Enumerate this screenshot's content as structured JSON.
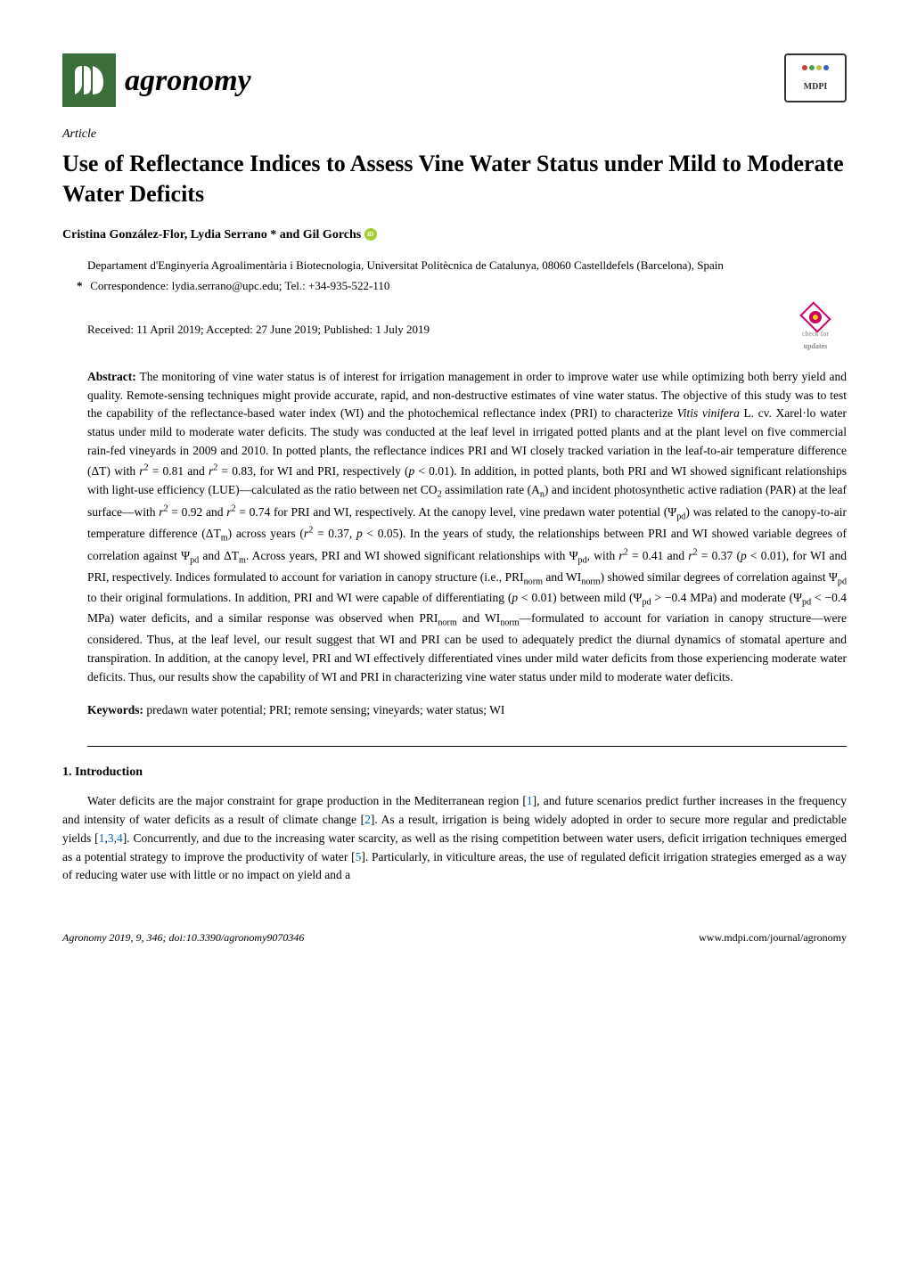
{
  "header": {
    "journal_name": "agronomy",
    "publisher_logo": "MDPI"
  },
  "article": {
    "type": "Article",
    "title": "Use of Reflectance Indices to Assess Vine Water Status under Mild to Moderate Water Deficits",
    "authors": "Cristina González-Flor, Lydia Serrano * and Gil Gorchs",
    "affiliation": "Departament d'Enginyeria Agroalimentària i Biotecnologia, Universitat Politècnica de Catalunya, 08060 Castelldefels (Barcelona), Spain",
    "correspondence": "Correspondence: lydia.serrano@upc.edu; Tel.: +34-935-522-110",
    "dates": "Received: 11 April 2019; Accepted: 27 June 2019; Published: 1 July 2019",
    "check_updates_label": "check for",
    "check_updates_label2": "updates"
  },
  "abstract": {
    "label": "Abstract:",
    "text_html": "The monitoring of vine water status is of interest for irrigation management in order to improve water use while optimizing both berry yield and quality. Remote-sensing techniques might provide accurate, rapid, and non-destructive estimates of vine water status. The objective of this study was to test the capability of the reflectance-based water index (WI) and the photochemical reflectance index (PRI) to characterize <i>Vitis vinifera</i> L. cv. Xarel·lo water status under mild to moderate water deficits. The study was conducted at the leaf level in irrigated potted plants and at the plant level on five commercial rain-fed vineyards in 2009 and 2010. In potted plants, the reflectance indices PRI and WI closely tracked variation in the leaf-to-air temperature difference (ΔT) with <i>r</i><sup>2</sup> = 0.81 and <i>r</i><sup>2</sup> = 0.83, for WI and PRI, respectively (<i>p</i> < 0.01). In addition, in potted plants, both PRI and WI showed significant relationships with light-use efficiency (LUE)—calculated as the ratio between net CO<sub>2</sub> assimilation rate (A<sub>n</sub>) and incident photosynthetic active radiation (PAR) at the leaf surface—with <i>r</i><sup>2</sup> = 0.92 and <i>r</i><sup>2</sup> = 0.74 for PRI and WI, respectively. At the canopy level, vine predawn water potential (Ψ<sub>pd</sub>) was related to the canopy-to-air temperature difference (ΔT<sub>m</sub>) across years (<i>r</i><sup>2</sup> = 0.37, <i>p</i> < 0.05). In the years of study, the relationships between PRI and WI showed variable degrees of correlation against Ψ<sub>pd</sub> and ΔT<sub>m</sub>. Across years, PRI and WI showed significant relationships with Ψ<sub>pd</sub>, with <i>r</i><sup>2</sup> = 0.41 and <i>r</i><sup>2</sup> = 0.37 (<i>p</i> < 0.01), for WI and PRI, respectively. Indices formulated to account for variation in canopy structure (i.e., PRI<sub>norm</sub> and WI<sub>norm</sub>) showed similar degrees of correlation against Ψ<sub>pd</sub> to their original formulations. In addition, PRI and WI were capable of differentiating (<i>p</i> < 0.01) between mild (Ψ<sub>pd</sub> > −0.4 MPa) and moderate (Ψ<sub>pd</sub> < −0.4 MPa) water deficits, and a similar response was observed when PRI<sub>norm</sub> and WI<sub>norm</sub>—formulated to account for variation in canopy structure—were considered. Thus, at the leaf level, our result suggest that WI and PRI can be used to adequately predict the diurnal dynamics of stomatal aperture and transpiration. In addition, at the canopy level, PRI and WI effectively differentiated vines under mild water deficits from those experiencing moderate water deficits. Thus, our results show the capability of WI and PRI in characterizing vine water status under mild to moderate water deficits."
  },
  "keywords": {
    "label": "Keywords:",
    "text": "predawn water potential; PRI; remote sensing; vineyards; water status; WI"
  },
  "sections": {
    "intro_heading": "1. Introduction",
    "intro_body_html": "Water deficits are the major constraint for grape production in the Mediterranean region [<span class=\"ref-link\">1</span>], and future scenarios predict further increases in the frequency and intensity of water deficits as a result of climate change [<span class=\"ref-link\">2</span>]. As a result, irrigation is being widely adopted in order to secure more regular and predictable yields [<span class=\"ref-link\">1</span>,<span class=\"ref-link\">3</span>,<span class=\"ref-link\">4</span>]. Concurrently, and due to the increasing water scarcity, as well as the rising competition between water users, deficit irrigation techniques emerged as a potential strategy to improve the productivity of water [<span class=\"ref-link\">5</span>]. Particularly, in viticulture areas, the use of regulated deficit irrigation strategies emerged as a way of reducing water use with little or no impact on yield and a"
  },
  "footer": {
    "left": "Agronomy 2019, 9, 346; doi:10.3390/agronomy9070346",
    "right": "www.mdpi.com/journal/agronomy"
  },
  "colors": {
    "journal_logo_bg": "#3b6e3b",
    "orcid_bg": "#a6ce39",
    "ref_link": "#0066cc",
    "check_border": "#cc0066",
    "text": "#000000",
    "bg": "#ffffff"
  }
}
